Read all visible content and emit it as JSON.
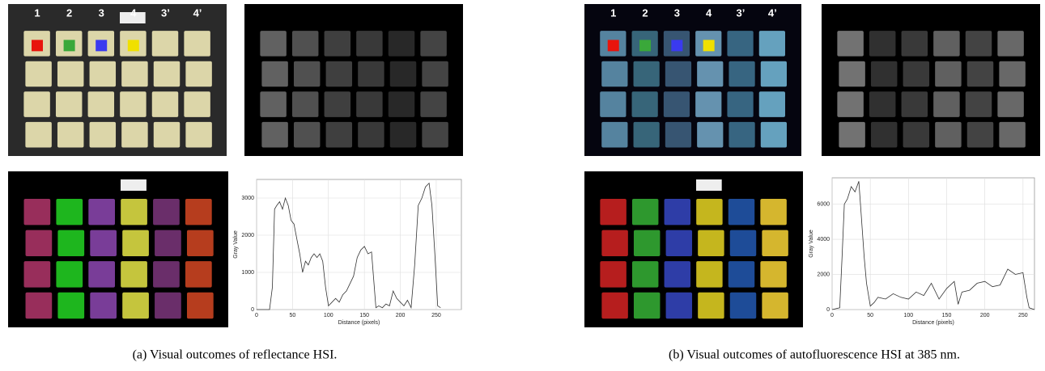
{
  "panels": [
    {
      "caption": "(a) Visual outcomes of reflectance HSI.",
      "column_labels": [
        "1",
        "2",
        "3",
        "4",
        "3’",
        "4’"
      ],
      "profile": {
        "type": "line",
        "xlabel": "Distance (pixels)",
        "ylabel": "Gray Value",
        "xlim": [
          0,
          285
        ],
        "ylim": [
          0,
          3500
        ],
        "xticks": [
          0,
          50,
          100,
          150,
          200,
          250
        ],
        "yticks": [
          0,
          1000,
          2000,
          3000
        ],
        "grid": true,
        "series": [
          {
            "color": "#333333",
            "x": [
              0,
              18,
              22,
              25,
              28,
              32,
              36,
              40,
              44,
              48,
              52,
              56,
              60,
              64,
              68,
              72,
              76,
              80,
              84,
              88,
              92,
              96,
              100,
              105,
              110,
              115,
              120,
              125,
              130,
              135,
              140,
              145,
              150,
              155,
              160,
              163,
              166,
              170,
              175,
              180,
              185,
              190,
              195,
              200,
              205,
              210,
              215,
              220,
              225,
              230,
              235,
              240,
              244,
              248,
              252,
              256
            ],
            "values": [
              0,
              0,
              600,
              2700,
              2800,
              2900,
              2700,
              3000,
              2800,
              2400,
              2300,
              1900,
              1500,
              1000,
              1300,
              1200,
              1400,
              1500,
              1400,
              1500,
              1300,
              600,
              100,
              200,
              300,
              200,
              400,
              500,
              700,
              900,
              1400,
              1600,
              1700,
              1500,
              1550,
              800,
              50,
              100,
              50,
              150,
              100,
              500,
              300,
              200,
              100,
              250,
              50,
              1200,
              2800,
              3000,
              3300,
              3400,
              2800,
              1500,
              100,
              50
            ]
          }
        ]
      }
    },
    {
      "caption": "(b) Visual outcomes of autofluorescence HSI at 385 nm.",
      "column_labels": [
        "1",
        "2",
        "3",
        "4",
        "3’",
        "4’"
      ],
      "profile": {
        "type": "line",
        "xlabel": "Distance (pixels)",
        "ylabel": "Gray Value",
        "xlim": [
          0,
          265
        ],
        "ylim": [
          0,
          7500
        ],
        "xticks": [
          0,
          50,
          100,
          150,
          200,
          250
        ],
        "yticks": [
          0,
          2000,
          4000,
          6000
        ],
        "grid": true,
        "series": [
          {
            "color": "#333333",
            "x": [
              0,
              10,
              13,
              16,
              20,
              25,
              30,
              35,
              38,
              42,
              45,
              50,
              55,
              60,
              70,
              80,
              90,
              100,
              110,
              120,
              130,
              140,
              150,
              160,
              165,
              170,
              180,
              190,
              200,
              210,
              220,
              230,
              240,
              250,
              255,
              258,
              265
            ],
            "values": [
              0,
              100,
              3000,
              6000,
              6300,
              7000,
              6700,
              7300,
              5500,
              3000,
              1500,
              200,
              400,
              700,
              600,
              900,
              700,
              600,
              1000,
              800,
              1500,
              600,
              1200,
              1600,
              300,
              1000,
              1100,
              1500,
              1600,
              1300,
              1400,
              2300,
              2000,
              2100,
              700,
              100,
              0
            ]
          }
        ]
      }
    }
  ]
}
